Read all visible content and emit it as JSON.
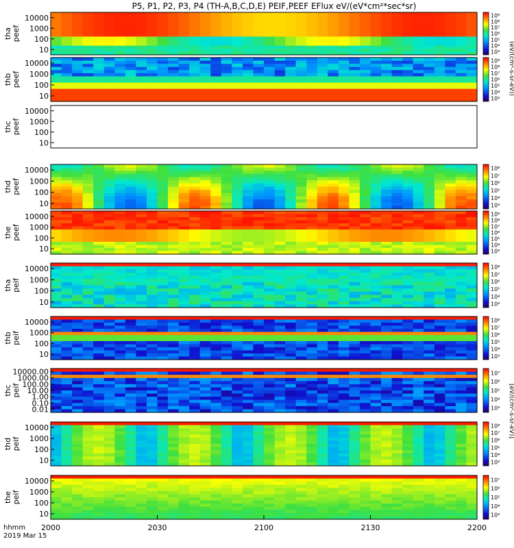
{
  "title": "P5, P1, P2, P3, P4 (TH-A,B,C,D,E) PEIF,PEEF EFlux eV/(eV*cm²*sec*sr)",
  "time_axis": {
    "label_line1": "hhmm",
    "label_line2": "2019 Mar 15",
    "ticks": [
      "2000",
      "2030",
      "2100",
      "2130",
      "2200"
    ]
  },
  "colorbar_labels": {
    "electron_units": "(eV/(cm²-s-sr-eV))",
    "ion_units": "[eV/(cm²-s-sr-eV)]",
    "cb_peef": [
      "10⁹",
      "10⁸",
      "10⁷",
      "10⁶",
      "10⁵",
      "10⁴",
      "10³"
    ],
    "cb_peef_d": [
      "10⁸",
      "10⁷",
      "10⁶",
      "10⁵",
      "10⁴",
      "10³"
    ],
    "cb_peif": [
      "10⁸",
      "10⁷",
      "10⁶",
      "10⁵",
      "10⁴",
      "10³"
    ],
    "cb_peif_c": [
      "10⁷",
      "10⁶",
      "10⁵",
      "10⁴",
      "10³"
    ],
    "cb_peif_e": [
      "10⁷",
      "10⁶",
      "10⁵",
      "10⁴",
      "10³"
    ]
  },
  "chart_data": {
    "type": "heatmap",
    "x_range": [
      "2000",
      "2200"
    ],
    "panels": [
      {
        "label1": "tha",
        "label2": "peef",
        "yticks": [
          "10000",
          "1000",
          "100",
          "10"
        ],
        "cbar": "cb_peef",
        "pattern": "peef_a"
      },
      {
        "label1": "thb",
        "label2": "peef",
        "yticks": [
          "10000",
          "1000",
          "100",
          "10"
        ],
        "cbar": "cb_peef",
        "pattern": "peef_b"
      },
      {
        "label1": "thc",
        "label2": "peef",
        "yticks": [
          "10000",
          "1000",
          "100",
          "10"
        ],
        "cbar": "",
        "pattern": "empty"
      },
      {
        "label1": "thd",
        "label2": "peef",
        "yticks": [
          "10000",
          "1000",
          "100",
          "10"
        ],
        "cbar": "cb_peef_d",
        "pattern": "peef_d"
      },
      {
        "label1": "the",
        "label2": "peef",
        "yticks": [
          "10000",
          "1000",
          "100",
          "10"
        ],
        "cbar": "cb_peef",
        "pattern": "peef_e"
      },
      {
        "label1": "tha",
        "label2": "peif",
        "yticks": [
          "10000",
          "1000",
          "100",
          "10"
        ],
        "cbar": "cb_peif",
        "pattern": "peif_a"
      },
      {
        "label1": "thb",
        "label2": "peif",
        "yticks": [
          "10000",
          "1000",
          "100",
          "10"
        ],
        "cbar": "cb_peif",
        "pattern": "peif_b"
      },
      {
        "label1": "thc",
        "label2": "peif",
        "yticks": [
          "10000.00",
          "1000.00",
          "100.00",
          "10.00",
          "1.00",
          "0.10",
          "0.01"
        ],
        "cbar": "cb_peif_c",
        "pattern": "peif_c"
      },
      {
        "label1": "thd",
        "label2": "peif",
        "yticks": [
          "10000",
          "1000",
          "100",
          "10"
        ],
        "cbar": "cb_peif",
        "pattern": "peif_d"
      },
      {
        "label1": "the",
        "label2": "peif",
        "yticks": [
          "10000",
          "1000",
          "100",
          "10"
        ],
        "cbar": "cb_peif_e",
        "pattern": "peif_e"
      }
    ]
  }
}
